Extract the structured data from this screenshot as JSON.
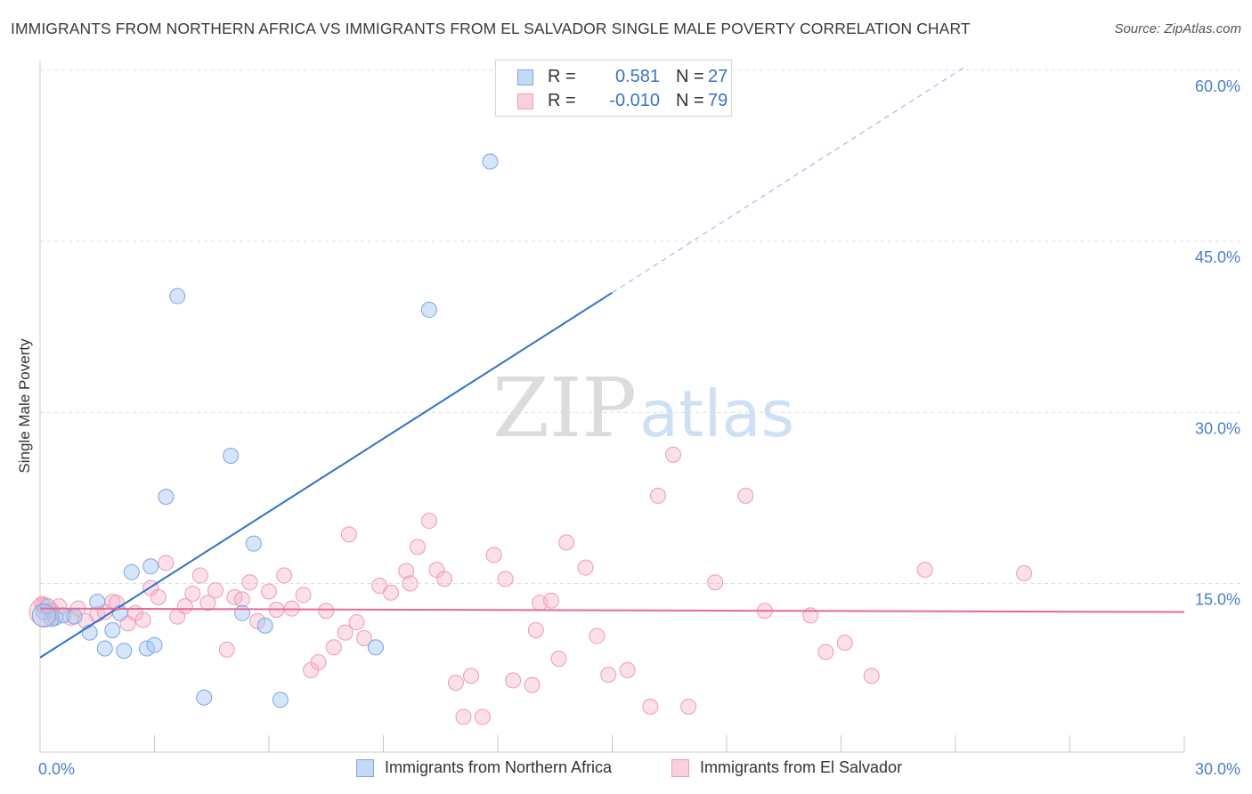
{
  "title": "IMMIGRANTS FROM NORTHERN AFRICA VS IMMIGRANTS FROM EL SALVADOR SINGLE MALE POVERTY CORRELATION CHART",
  "source": "Source: ZipAtlas.com",
  "watermark": {
    "zip": "ZIP",
    "atlas": "atlas"
  },
  "colors": {
    "blue": "#8fb8ee",
    "blue_line": "#2f72c8",
    "pink": "#f5a9c0",
    "pink_line": "#e8689a",
    "axis_text": "#4a7fcc",
    "grid": "#dddddd"
  },
  "legend_top": {
    "rows": [
      {
        "r_label": "R =",
        "r_value": "0.581",
        "n_label": "N =",
        "n_value": "27"
      },
      {
        "r_label": "R =",
        "r_value": "-0.010",
        "n_label": "N =",
        "n_value": "79"
      }
    ]
  },
  "legend_bottom": {
    "items": [
      {
        "label": "Immigrants from Northern Africa"
      },
      {
        "label": "Immigrants from El Salvador"
      }
    ]
  },
  "chart_data": {
    "type": "scatter",
    "title": "IMMIGRANTS FROM NORTHERN AFRICA VS IMMIGRANTS FROM EL SALVADOR SINGLE MALE POVERTY CORRELATION CHART",
    "xlabel": "",
    "ylabel": "Single Male Poverty",
    "xlim": [
      0,
      30
    ],
    "ylim": [
      0,
      62
    ],
    "x_tick_labels": [
      "0.0%",
      "30.0%"
    ],
    "y_ticks": [
      15,
      30,
      45,
      60
    ],
    "y_tick_labels": [
      "15.0%",
      "30.0%",
      "45.0%",
      "60.0%"
    ],
    "grid": true,
    "legend_position": "top-center",
    "series": [
      {
        "name": "Immigrants from Northern Africa",
        "color": "#8fb8ee",
        "r": 0.581,
        "n": 27,
        "trend": {
          "x0": 0,
          "y0": 8.5,
          "x1": 15,
          "y1": 40.5,
          "dash_to_x": 24.2,
          "dash_to_y": 60.2
        },
        "points": [
          [
            0.1,
            12.5
          ],
          [
            0.2,
            13.0
          ],
          [
            0.4,
            12.0
          ],
          [
            0.6,
            12.2
          ],
          [
            0.9,
            12.1
          ],
          [
            1.3,
            10.7
          ],
          [
            1.5,
            13.4
          ],
          [
            1.7,
            9.3
          ],
          [
            1.9,
            10.9
          ],
          [
            2.1,
            12.4
          ],
          [
            2.2,
            9.1
          ],
          [
            2.4,
            16.0
          ],
          [
            2.8,
            9.3
          ],
          [
            2.9,
            16.5
          ],
          [
            3.0,
            9.6
          ],
          [
            3.3,
            22.6
          ],
          [
            3.6,
            40.2
          ],
          [
            4.3,
            5.0
          ],
          [
            5.0,
            26.2
          ],
          [
            5.3,
            12.4
          ],
          [
            5.6,
            18.5
          ],
          [
            5.9,
            11.3
          ],
          [
            6.3,
            4.8
          ],
          [
            8.8,
            9.4
          ],
          [
            10.2,
            39.0
          ],
          [
            11.8,
            52.0
          ],
          [
            0.3,
            11.9
          ]
        ]
      },
      {
        "name": "Immigrants from El Salvador",
        "color": "#f5a9c0",
        "r": -0.01,
        "n": 79,
        "trend": {
          "x0": 0,
          "y0": 12.8,
          "x1": 30,
          "y1": 12.5
        },
        "points": [
          [
            0.1,
            13.0
          ],
          [
            0.3,
            12.6
          ],
          [
            0.5,
            13.0
          ],
          [
            0.8,
            12.0
          ],
          [
            1.0,
            12.8
          ],
          [
            1.2,
            11.7
          ],
          [
            1.5,
            12.3
          ],
          [
            1.7,
            12.5
          ],
          [
            1.9,
            13.4
          ],
          [
            2.0,
            13.3
          ],
          [
            2.3,
            11.5
          ],
          [
            2.5,
            12.4
          ],
          [
            2.7,
            11.8
          ],
          [
            2.9,
            14.6
          ],
          [
            3.1,
            13.8
          ],
          [
            3.3,
            16.8
          ],
          [
            3.6,
            12.1
          ],
          [
            3.8,
            13.0
          ],
          [
            4.0,
            14.1
          ],
          [
            4.2,
            15.7
          ],
          [
            4.4,
            13.3
          ],
          [
            4.6,
            14.4
          ],
          [
            4.9,
            9.2
          ],
          [
            5.1,
            13.8
          ],
          [
            5.3,
            13.6
          ],
          [
            5.5,
            15.1
          ],
          [
            5.7,
            11.7
          ],
          [
            6.0,
            14.3
          ],
          [
            6.2,
            12.7
          ],
          [
            6.4,
            15.7
          ],
          [
            6.6,
            12.8
          ],
          [
            6.9,
            14.0
          ],
          [
            7.1,
            7.4
          ],
          [
            7.3,
            8.1
          ],
          [
            7.5,
            12.6
          ],
          [
            7.7,
            9.4
          ],
          [
            8.0,
            10.7
          ],
          [
            8.1,
            19.3
          ],
          [
            8.3,
            11.6
          ],
          [
            8.5,
            10.2
          ],
          [
            8.9,
            14.8
          ],
          [
            9.2,
            14.2
          ],
          [
            9.6,
            16.1
          ],
          [
            9.7,
            15.0
          ],
          [
            9.9,
            18.2
          ],
          [
            10.2,
            20.5
          ],
          [
            10.4,
            16.2
          ],
          [
            10.6,
            15.4
          ],
          [
            10.9,
            6.3
          ],
          [
            11.1,
            3.3
          ],
          [
            11.3,
            6.9
          ],
          [
            11.6,
            3.3
          ],
          [
            11.9,
            17.5
          ],
          [
            12.2,
            15.4
          ],
          [
            12.4,
            6.5
          ],
          [
            12.9,
            6.1
          ],
          [
            13.0,
            10.9
          ],
          [
            13.1,
            13.3
          ],
          [
            13.4,
            13.5
          ],
          [
            13.6,
            8.4
          ],
          [
            13.8,
            18.6
          ],
          [
            14.3,
            16.4
          ],
          [
            14.6,
            10.4
          ],
          [
            14.9,
            7.0
          ],
          [
            15.4,
            7.4
          ],
          [
            16.0,
            4.2
          ],
          [
            16.2,
            22.7
          ],
          [
            16.6,
            26.3
          ],
          [
            17.0,
            4.2
          ],
          [
            17.7,
            15.1
          ],
          [
            18.5,
            22.7
          ],
          [
            19.0,
            12.6
          ],
          [
            20.2,
            12.2
          ],
          [
            20.6,
            9.0
          ],
          [
            21.1,
            9.8
          ],
          [
            21.8,
            6.9
          ],
          [
            23.2,
            16.2
          ],
          [
            25.8,
            15.9
          ],
          [
            0.05,
            13.2
          ]
        ]
      }
    ]
  }
}
